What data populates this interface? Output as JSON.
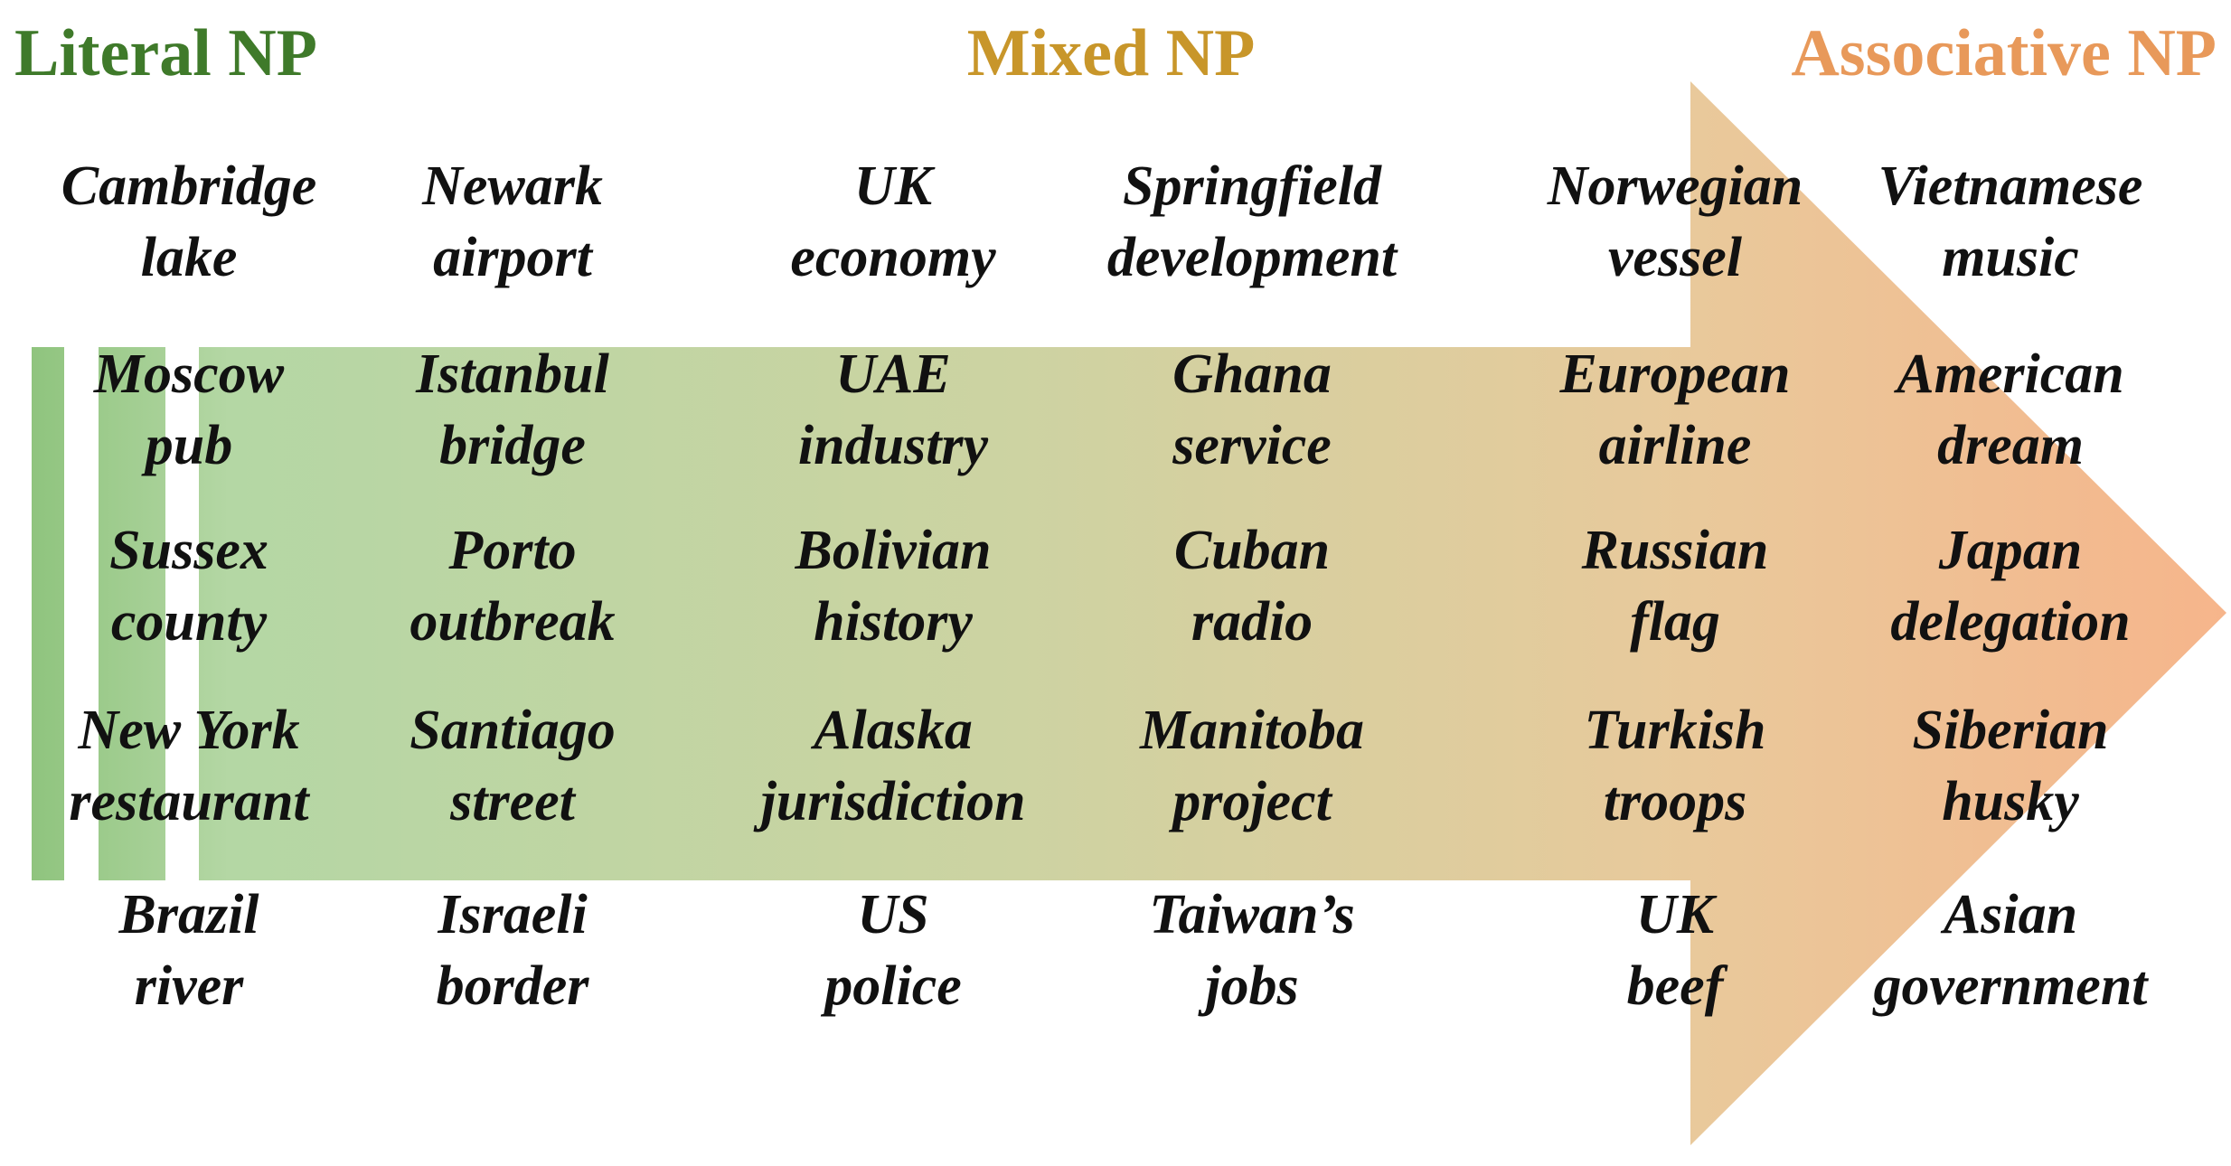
{
  "headings": {
    "literal": "Literal NP",
    "mixed": "Mixed NP",
    "associative": "Associative NP"
  },
  "columns": [
    [
      [
        "Cambridge",
        "lake"
      ],
      [
        "Moscow",
        "pub"
      ],
      [
        "Sussex",
        "county"
      ],
      [
        "New York",
        "restaurant"
      ],
      [
        "Brazil",
        "river"
      ]
    ],
    [
      [
        "Newark",
        "airport"
      ],
      [
        "Istanbul",
        "bridge"
      ],
      [
        "Porto",
        "outbreak"
      ],
      [
        "Santiago",
        "street"
      ],
      [
        "Israeli",
        "border"
      ]
    ],
    [
      [
        "UK",
        "economy"
      ],
      [
        "UAE",
        "industry"
      ],
      [
        "Bolivian",
        "history"
      ],
      [
        "Alaska",
        "jurisdiction"
      ],
      [
        "US",
        "police"
      ]
    ],
    [
      [
        "Springfield",
        "development"
      ],
      [
        "Ghana",
        "service"
      ],
      [
        "Cuban",
        "radio"
      ],
      [
        "Manitoba",
        "project"
      ],
      [
        "Taiwan’s",
        "jobs"
      ]
    ],
    [
      [
        "Norwegian",
        "vessel"
      ],
      [
        "European",
        "airline"
      ],
      [
        "Russian",
        "flag"
      ],
      [
        "Turkish",
        "troops"
      ],
      [
        "UK",
        "beef"
      ]
    ],
    [
      [
        "Vietnamese",
        "music"
      ],
      [
        "American",
        "dream"
      ],
      [
        "Japan",
        "delegation"
      ],
      [
        "Siberian",
        "husky"
      ],
      [
        "Asian",
        "government"
      ]
    ]
  ]
}
